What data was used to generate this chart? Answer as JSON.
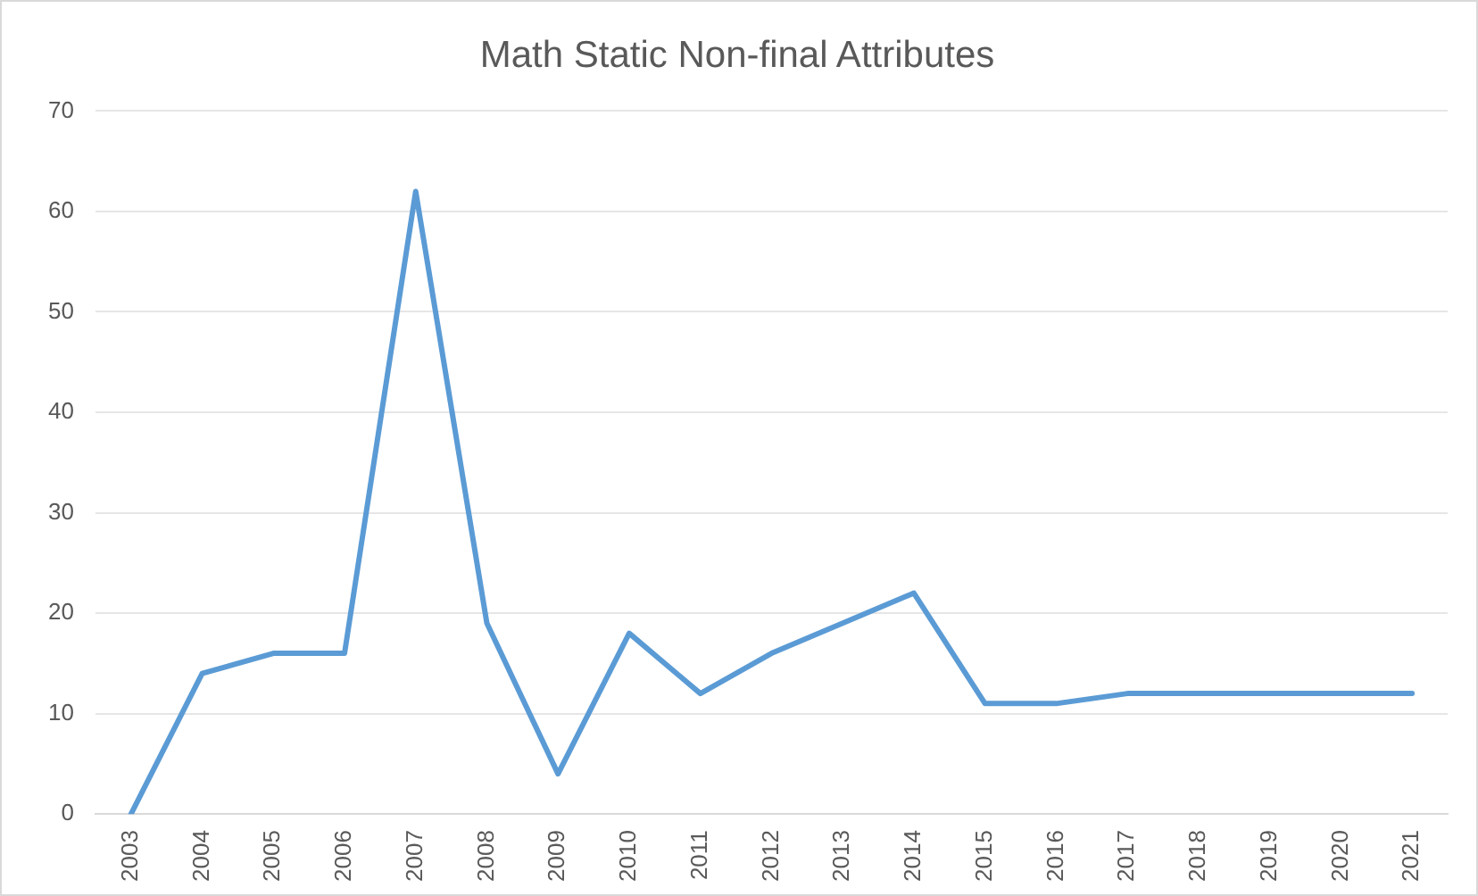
{
  "chart_data": {
    "type": "line",
    "title": "Math Static Non-final Attributes",
    "categories": [
      "2003",
      "2004",
      "2005",
      "2006",
      "2007",
      "2008",
      "2009",
      "2010",
      "2011",
      "2012",
      "2013",
      "2014",
      "2015",
      "2016",
      "2017",
      "2018",
      "2019",
      "2020",
      "2021"
    ],
    "series": [
      {
        "color": "#5b9bd5",
        "values": [
          0,
          14,
          16,
          16,
          62,
          19,
          4,
          18,
          12,
          16,
          19,
          22,
          11,
          11,
          12,
          12,
          12,
          12,
          12
        ]
      }
    ],
    "ylim": [
      0,
      70
    ],
    "yticks": [
      0,
      10,
      20,
      30,
      40,
      50,
      60,
      70
    ],
    "grid": "y",
    "legend": false,
    "marker": "none",
    "line_style": "solid"
  }
}
